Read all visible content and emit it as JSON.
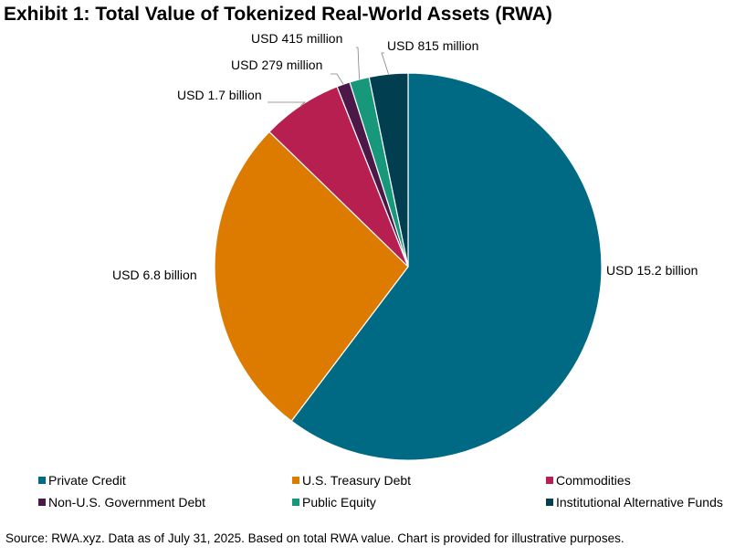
{
  "title": "Exhibit 1: Total Value of Tokenized Real-World Assets (RWA)",
  "source": "Source: RWA.xyz. Data as of July 31, 2025. Based on total RWA value. Chart is provided for illustrative purposes.",
  "chart_data": {
    "type": "pie",
    "unit": "USD billion",
    "slices": [
      {
        "name": "Private Credit",
        "value": 15.2,
        "label": "USD 15.2 billion",
        "color": "#006a84"
      },
      {
        "name": "U.S. Treasury Debt",
        "value": 6.8,
        "label": "USD 6.8 billion",
        "color": "#dd7a00"
      },
      {
        "name": "Commodities",
        "value": 1.7,
        "label": "USD 1.7 billion",
        "color": "#b71f51"
      },
      {
        "name": "Non-U.S. Government Debt",
        "value": 0.279,
        "label": "USD 279 million",
        "color": "#4b1848"
      },
      {
        "name": "Public Equity",
        "value": 0.415,
        "label": "USD 415 million",
        "color": "#17987a"
      },
      {
        "name": "Institutional Alternative Funds",
        "value": 0.815,
        "label": "USD 815 million",
        "color": "#003e50"
      }
    ],
    "legend_position": "bottom"
  }
}
